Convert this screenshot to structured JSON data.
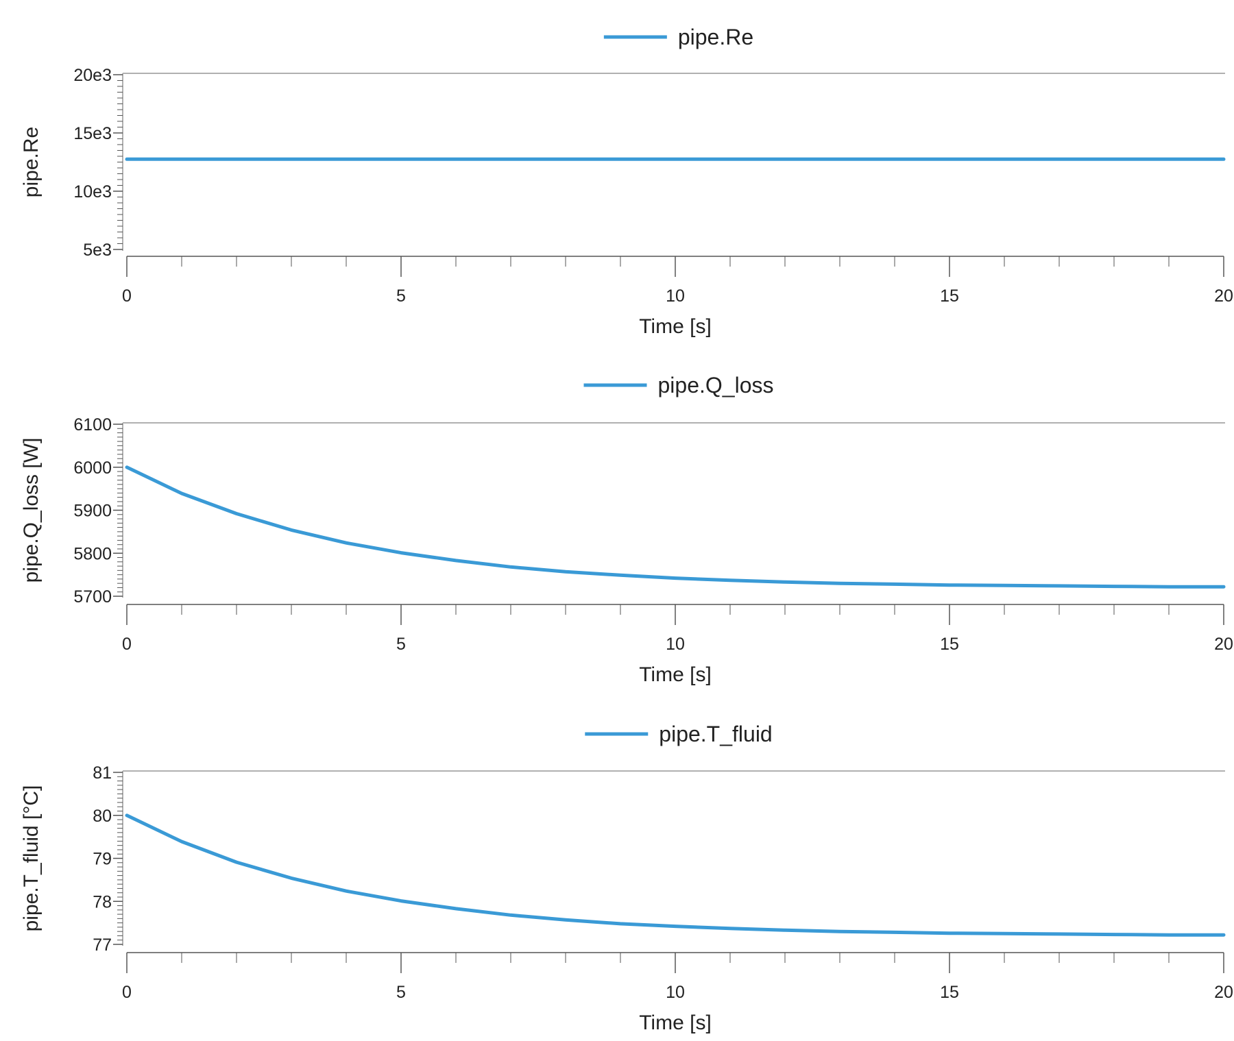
{
  "style": {
    "line_color": "#3a9ad6",
    "axis_color": "#555555",
    "text_color": "#222222"
  },
  "chart_data": [
    {
      "type": "line",
      "legend": {
        "placement": "top-center"
      },
      "xlabel": "Time [s]",
      "ylabel": "pipe.Re",
      "xlim": [
        0,
        20
      ],
      "ylim": [
        5000,
        20000
      ],
      "xticks": [
        0,
        5,
        10,
        15,
        20
      ],
      "xtick_labels": [
        "0",
        "5",
        "10",
        "15",
        "20"
      ],
      "yticks": [
        5000,
        10000,
        15000,
        20000
      ],
      "ytick_labels": [
        "5e3",
        "10e3",
        "15e3",
        "20e3"
      ],
      "series": [
        {
          "name": "pipe.Re",
          "x": [
            0,
            2,
            4,
            6,
            8,
            10,
            12,
            14,
            16,
            18,
            20
          ],
          "y": [
            12750,
            12750,
            12750,
            12750,
            12750,
            12750,
            12750,
            12750,
            12750,
            12750,
            12750
          ]
        }
      ]
    },
    {
      "type": "line",
      "legend": {
        "placement": "top-center"
      },
      "xlabel": "Time [s]",
      "ylabel": "pipe.Q_loss [W]",
      "xlim": [
        0,
        20
      ],
      "ylim": [
        5700,
        6100
      ],
      "xticks": [
        0,
        5,
        10,
        15,
        20
      ],
      "xtick_labels": [
        "0",
        "5",
        "10",
        "15",
        "20"
      ],
      "yticks": [
        5700,
        5800,
        5900,
        6000,
        6100
      ],
      "ytick_labels": [
        "5700",
        "5800",
        "5900",
        "6000",
        "6100"
      ],
      "series": [
        {
          "name": "pipe.Q_loss",
          "x": [
            0,
            1,
            2,
            3,
            4,
            5,
            6,
            7,
            8,
            9,
            10,
            11,
            12,
            13,
            14,
            15,
            16,
            17,
            18,
            19,
            20
          ],
          "y": [
            6000,
            5939,
            5892,
            5854,
            5824,
            5801,
            5783,
            5768,
            5757,
            5749,
            5742,
            5737,
            5733,
            5730,
            5728,
            5726,
            5725,
            5724,
            5723,
            5722,
            5722
          ]
        }
      ]
    },
    {
      "type": "line",
      "legend": {
        "placement": "top-center"
      },
      "xlabel": "Time [s]",
      "ylabel": "pipe.T_fluid [°C]",
      "xlim": [
        0,
        20
      ],
      "ylim": [
        77,
        81
      ],
      "xticks": [
        0,
        5,
        10,
        15,
        20
      ],
      "xtick_labels": [
        "0",
        "5",
        "10",
        "15",
        "20"
      ],
      "yticks": [
        77,
        78,
        79,
        80,
        81
      ],
      "ytick_labels": [
        "77",
        "78",
        "79",
        "80",
        "81"
      ],
      "series": [
        {
          "name": "pipe.T_fluid",
          "x": [
            0,
            1,
            2,
            3,
            4,
            5,
            6,
            7,
            8,
            9,
            10,
            11,
            12,
            13,
            14,
            15,
            16,
            17,
            18,
            19,
            20
          ],
          "y": [
            80.0,
            79.39,
            78.91,
            78.54,
            78.24,
            78.01,
            77.83,
            77.68,
            77.57,
            77.48,
            77.42,
            77.37,
            77.33,
            77.3,
            77.28,
            77.26,
            77.25,
            77.24,
            77.23,
            77.22,
            77.22
          ]
        }
      ]
    }
  ]
}
